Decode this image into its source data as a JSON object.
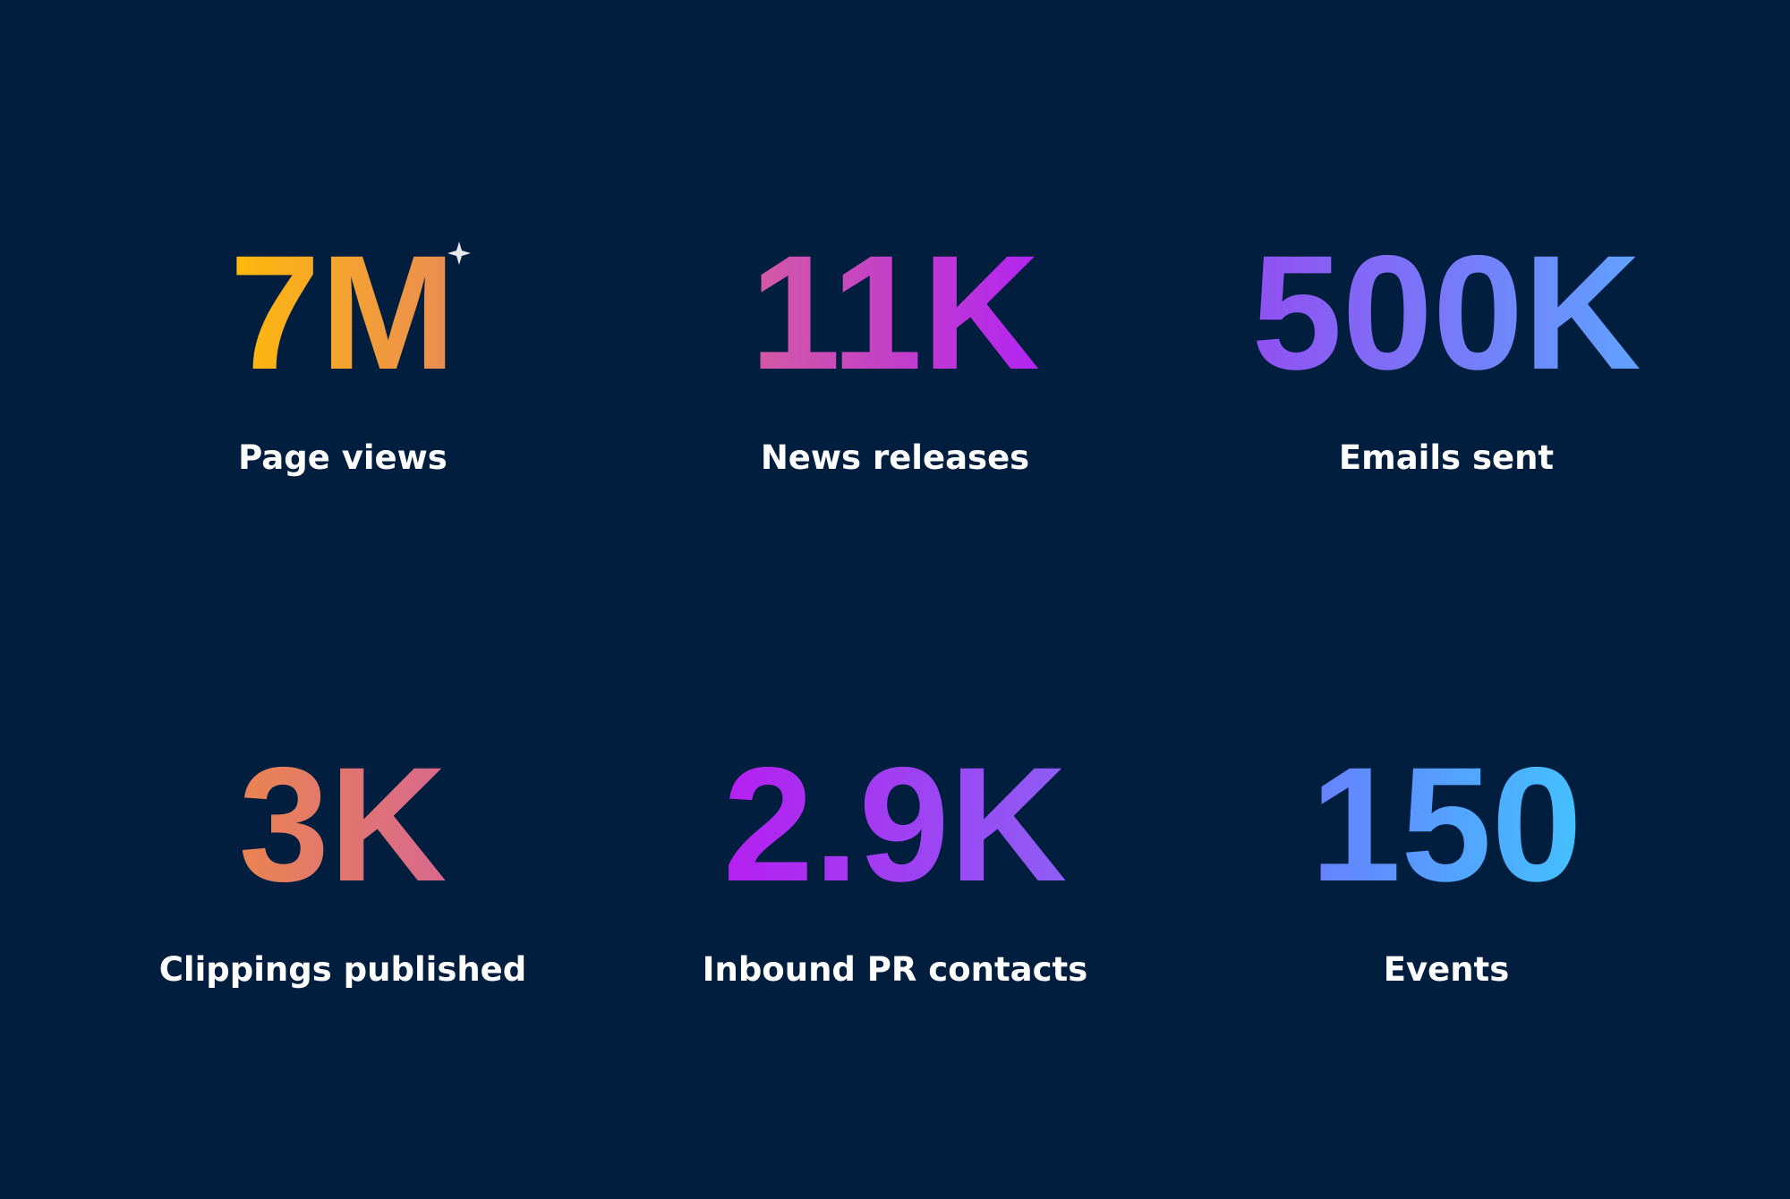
{
  "stats": [
    {
      "value": "7M",
      "label": "Page views"
    },
    {
      "value": "11K",
      "label": "News releases"
    },
    {
      "value": "500K",
      "label": "Emails sent"
    },
    {
      "value": "3K",
      "label": "Clippings published"
    },
    {
      "value": "2.9K",
      "label": "Inbound PR contacts"
    },
    {
      "value": "150",
      "label": "Events"
    }
  ]
}
